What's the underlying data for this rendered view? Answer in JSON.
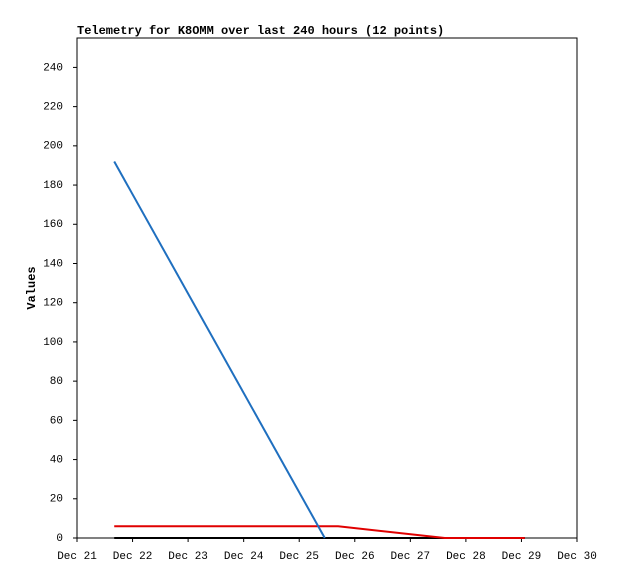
{
  "chart_data": {
    "type": "line",
    "title": "Telemetry for K8OMM over last 240 hours (12 points)",
    "y_label": "Values",
    "xlim": [
      21,
      30
    ],
    "xticks": [
      {
        "value": 21,
        "label": "Dec 21"
      },
      {
        "value": 22,
        "label": "Dec 22"
      },
      {
        "value": 23,
        "label": "Dec 23"
      },
      {
        "value": 24,
        "label": "Dec 24"
      },
      {
        "value": 25,
        "label": "Dec 25"
      },
      {
        "value": 26,
        "label": "Dec 26"
      },
      {
        "value": 27,
        "label": "Dec 27"
      },
      {
        "value": 28,
        "label": "Dec 28"
      },
      {
        "value": 29,
        "label": "Dec 29"
      },
      {
        "value": 30,
        "label": "Dec 30"
      }
    ],
    "ylim": [
      0,
      255
    ],
    "yticks": [
      0,
      20,
      40,
      60,
      80,
      100,
      120,
      140,
      160,
      180,
      200,
      220,
      240
    ],
    "grid": false,
    "series": [
      {
        "color": "#000000",
        "x": [
          21.67,
          29.06
        ],
        "values": [
          0,
          0
        ]
      },
      {
        "color": "#e00000",
        "x": [
          21.67,
          25.7,
          27.62,
          29.06
        ],
        "values": [
          6,
          6,
          0,
          0
        ]
      },
      {
        "color": "#1f6fbf",
        "x": [
          21.67,
          25.46
        ],
        "values": [
          192,
          0
        ]
      }
    ]
  }
}
